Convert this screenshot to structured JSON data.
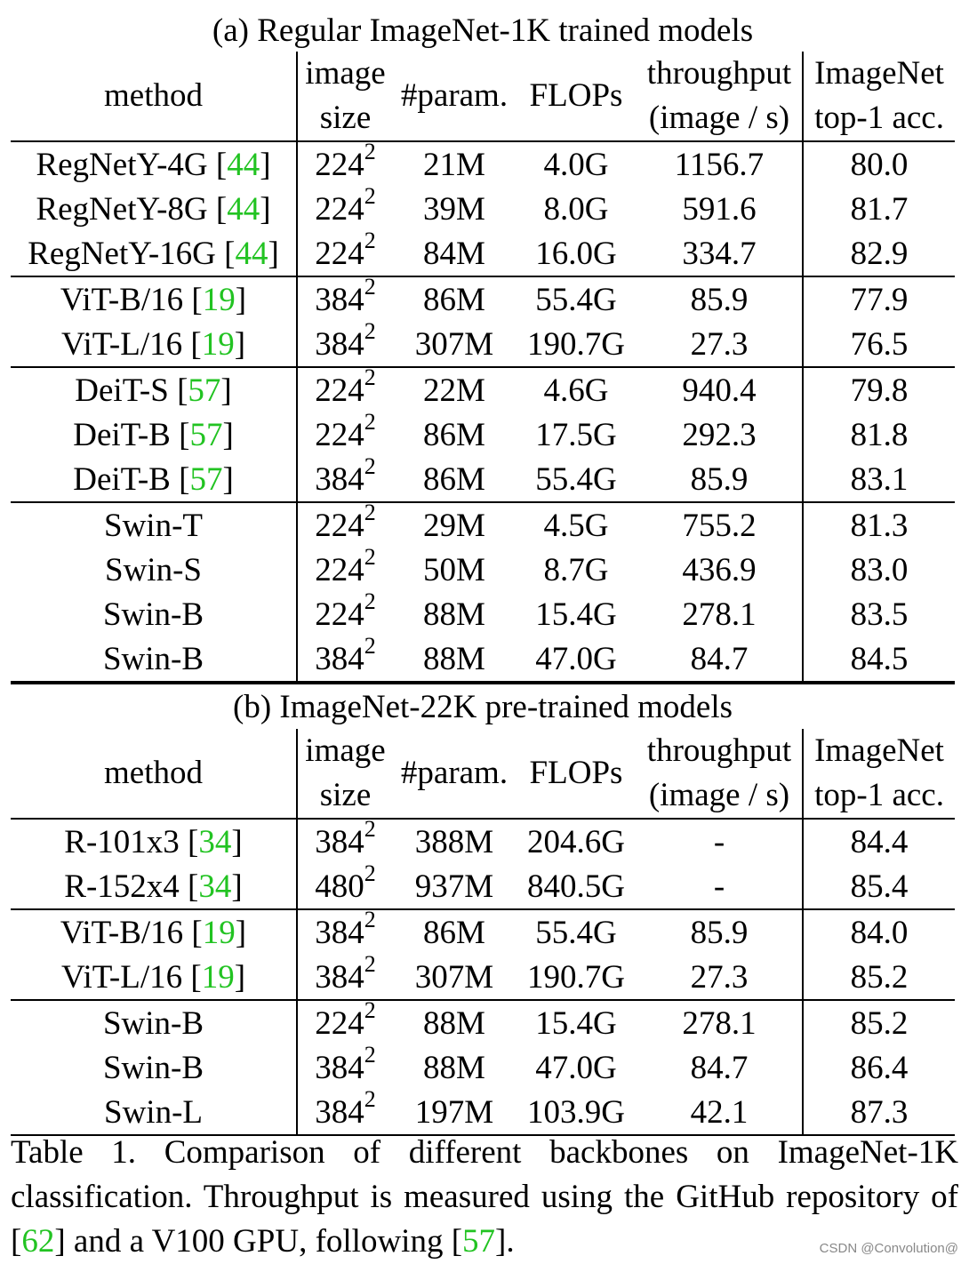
{
  "section_a_title": "(a) Regular ImageNet-1K trained models",
  "section_b_title": "(b) ImageNet-22K pre-trained models",
  "header": {
    "method": "method",
    "image_size_1": "image",
    "image_size_2": "size",
    "params": "#param.",
    "flops": "FLOPs",
    "throughput_1": "throughput",
    "throughput_2": "(image / s)",
    "acc_1": "ImageNet",
    "acc_2": "top-1 acc."
  },
  "section_a_rows": [
    {
      "method": "RegNetY-4G",
      "cite": "44",
      "res": "224",
      "params": "21M",
      "flops": "4.0G",
      "throughput": "1156.7",
      "acc": "80.0"
    },
    {
      "method": "RegNetY-8G",
      "cite": "44",
      "res": "224",
      "params": "39M",
      "flops": "8.0G",
      "throughput": "591.6",
      "acc": "81.7"
    },
    {
      "method": "RegNetY-16G",
      "cite": "44",
      "res": "224",
      "params": "84M",
      "flops": "16.0G",
      "throughput": "334.7",
      "acc": "82.9"
    },
    {
      "method": "ViT-B/16",
      "cite": "19",
      "res": "384",
      "params": "86M",
      "flops": "55.4G",
      "throughput": "85.9",
      "acc": "77.9"
    },
    {
      "method": "ViT-L/16",
      "cite": "19",
      "res": "384",
      "params": "307M",
      "flops": "190.7G",
      "throughput": "27.3",
      "acc": "76.5"
    },
    {
      "method": "DeiT-S",
      "cite": "57",
      "res": "224",
      "params": "22M",
      "flops": "4.6G",
      "throughput": "940.4",
      "acc": "79.8"
    },
    {
      "method": "DeiT-B",
      "cite": "57",
      "res": "224",
      "params": "86M",
      "flops": "17.5G",
      "throughput": "292.3",
      "acc": "81.8"
    },
    {
      "method": "DeiT-B",
      "cite": "57",
      "res": "384",
      "params": "86M",
      "flops": "55.4G",
      "throughput": "85.9",
      "acc": "83.1"
    },
    {
      "method": "Swin-T",
      "cite": "",
      "res": "224",
      "params": "29M",
      "flops": "4.5G",
      "throughput": "755.2",
      "acc": "81.3"
    },
    {
      "method": "Swin-S",
      "cite": "",
      "res": "224",
      "params": "50M",
      "flops": "8.7G",
      "throughput": "436.9",
      "acc": "83.0"
    },
    {
      "method": "Swin-B",
      "cite": "",
      "res": "224",
      "params": "88M",
      "flops": "15.4G",
      "throughput": "278.1",
      "acc": "83.5"
    },
    {
      "method": "Swin-B",
      "cite": "",
      "res": "384",
      "params": "88M",
      "flops": "47.0G",
      "throughput": "84.7",
      "acc": "84.5"
    }
  ],
  "section_b_rows": [
    {
      "method": "R-101x3",
      "cite": "34",
      "res": "384",
      "params": "388M",
      "flops": "204.6G",
      "throughput": "-",
      "acc": "84.4"
    },
    {
      "method": "R-152x4",
      "cite": "34",
      "res": "480",
      "params": "937M",
      "flops": "840.5G",
      "throughput": "-",
      "acc": "85.4"
    },
    {
      "method": "ViT-B/16",
      "cite": "19",
      "res": "384",
      "params": "86M",
      "flops": "55.4G",
      "throughput": "85.9",
      "acc": "84.0"
    },
    {
      "method": "ViT-L/16",
      "cite": "19",
      "res": "384",
      "params": "307M",
      "flops": "190.7G",
      "throughput": "27.3",
      "acc": "85.2"
    },
    {
      "method": "Swin-B",
      "cite": "",
      "res": "224",
      "params": "88M",
      "flops": "15.4G",
      "throughput": "278.1",
      "acc": "85.2"
    },
    {
      "method": "Swin-B",
      "cite": "",
      "res": "384",
      "params": "88M",
      "flops": "47.0G",
      "throughput": "84.7",
      "acc": "86.4"
    },
    {
      "method": "Swin-L",
      "cite": "",
      "res": "384",
      "params": "197M",
      "flops": "103.9G",
      "throughput": "42.1",
      "acc": "87.3"
    }
  ],
  "superscript": "2",
  "caption": {
    "part1": "Table 1. Comparison of different backbones on ImageNet-1K classification. Throughput is measured using the GitHub repository of [",
    "cite1": "62",
    "part2": "] and a V100 GPU, following [",
    "cite2": "57",
    "part3": "]."
  },
  "watermark": "CSDN @Convolution@",
  "colors": {
    "citation": "#22c322",
    "text": "#000000"
  }
}
